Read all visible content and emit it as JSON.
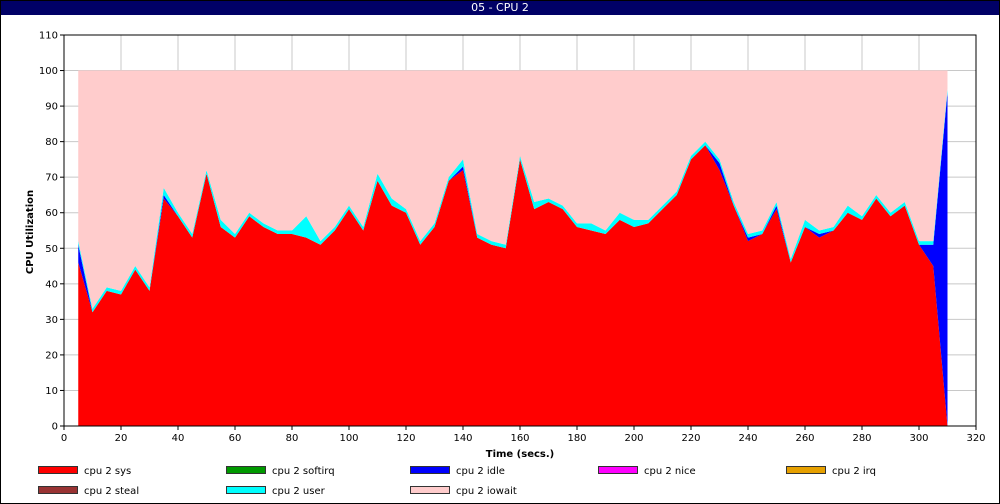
{
  "window": {
    "title": "05 - CPU 2"
  },
  "chart_data": {
    "type": "area",
    "title": "05 - CPU 2",
    "xlabel": "Time (secs.)",
    "ylabel": "CPU Utilization",
    "xlim": [
      0,
      320
    ],
    "ylim": [
      0,
      110
    ],
    "xticks": [
      0,
      20,
      40,
      60,
      80,
      100,
      120,
      140,
      160,
      180,
      200,
      220,
      240,
      260,
      280,
      300,
      320
    ],
    "yticks": [
      0,
      10,
      20,
      30,
      40,
      50,
      60,
      70,
      80,
      90,
      100,
      110
    ],
    "grid": true,
    "legend_position": "bottom",
    "x": [
      5,
      10,
      15,
      20,
      25,
      30,
      35,
      40,
      45,
      50,
      55,
      60,
      65,
      70,
      75,
      80,
      85,
      90,
      95,
      100,
      105,
      110,
      115,
      120,
      125,
      130,
      135,
      140,
      145,
      150,
      155,
      160,
      165,
      170,
      175,
      180,
      185,
      190,
      195,
      200,
      205,
      210,
      215,
      220,
      225,
      230,
      235,
      240,
      245,
      250,
      255,
      260,
      265,
      270,
      275,
      280,
      285,
      290,
      295,
      300,
      305,
      310
    ],
    "series": [
      {
        "name": "cpu 2 sys",
        "color": "#ff0000",
        "values": [
          46,
          32,
          38,
          37,
          44,
          38,
          64,
          59,
          53,
          71,
          56,
          53,
          59,
          56,
          54,
          54,
          53,
          51,
          55,
          61,
          55,
          69,
          62,
          60,
          51,
          56,
          69,
          72,
          53,
          51,
          50,
          75,
          61,
          63,
          61,
          56,
          55,
          54,
          58,
          56,
          57,
          61,
          65,
          75,
          79,
          72,
          62,
          52,
          54,
          61,
          46,
          56,
          53,
          55,
          60,
          58,
          64,
          59,
          62,
          51,
          45,
          0
        ]
      },
      {
        "name": "cpu 2 softirq",
        "color": "#009900",
        "values": [
          0,
          0,
          0,
          0,
          0,
          0,
          0,
          0,
          0,
          0,
          0,
          0,
          0,
          0,
          0,
          0,
          0,
          0,
          0,
          0,
          0,
          0,
          0,
          0,
          0,
          0,
          0,
          0,
          0,
          0,
          0,
          0,
          0,
          0,
          0,
          0,
          0,
          0,
          0,
          0,
          0,
          0,
          0,
          0,
          0,
          0,
          0,
          0,
          0,
          0,
          0,
          0,
          0,
          0,
          0,
          0,
          0,
          0,
          0,
          0,
          0,
          0
        ]
      },
      {
        "name": "cpu 2 idle",
        "color": "#0000ff",
        "values": [
          5,
          0,
          0,
          0,
          0,
          0,
          1,
          0,
          0,
          0,
          0,
          0,
          0,
          0,
          0,
          0,
          0,
          0,
          0,
          0,
          0,
          0,
          0,
          0,
          0,
          0,
          0,
          1,
          0,
          0,
          0,
          0,
          0,
          0,
          0,
          0,
          0,
          0,
          0,
          0,
          0,
          0,
          0,
          0,
          0,
          2,
          0,
          1,
          0,
          1,
          0,
          0,
          1,
          0,
          0,
          0,
          0,
          0,
          0,
          0,
          6,
          94
        ]
      },
      {
        "name": "cpu 2 nice",
        "color": "#ff00ff",
        "values": [
          0,
          0,
          0,
          0,
          0,
          0,
          0,
          0,
          0,
          0,
          0,
          0,
          0,
          0,
          0,
          0,
          0,
          0,
          0,
          0,
          0,
          0,
          0,
          0,
          0,
          0,
          0,
          0,
          0,
          0,
          0,
          0,
          0,
          0,
          0,
          0,
          0,
          0,
          0,
          0,
          0,
          0,
          0,
          0,
          0,
          0,
          0,
          0,
          0,
          0,
          0,
          0,
          0,
          0,
          0,
          0,
          0,
          0,
          0,
          0,
          0,
          0
        ]
      },
      {
        "name": "cpu 2 irq",
        "color": "#e6a000",
        "values": [
          0,
          0,
          0,
          0,
          0,
          0,
          0,
          0,
          0,
          0,
          0,
          0,
          0,
          0,
          0,
          0,
          0,
          0,
          0,
          0,
          0,
          0,
          0,
          0,
          0,
          0,
          0,
          0,
          0,
          0,
          0,
          0,
          0,
          0,
          0,
          0,
          0,
          0,
          0,
          0,
          0,
          0,
          0,
          0,
          0,
          0,
          0,
          0,
          0,
          0,
          0,
          0,
          0,
          0,
          0,
          0,
          0,
          0,
          0,
          0,
          0,
          0
        ]
      },
      {
        "name": "cpu 2 steal",
        "color": "#993333",
        "values": [
          0,
          0,
          0,
          0,
          0,
          0,
          0,
          0,
          0,
          0,
          0,
          0,
          0,
          0,
          0,
          0,
          0,
          0,
          0,
          0,
          0,
          0,
          0,
          0,
          0,
          0,
          0,
          0,
          0,
          0,
          0,
          0,
          0,
          0,
          0,
          0,
          0,
          0,
          0,
          0,
          0,
          0,
          0,
          0,
          0,
          0,
          0,
          0,
          0,
          0,
          0,
          0,
          0,
          0,
          0,
          0,
          0,
          0,
          0,
          0,
          0,
          0
        ]
      },
      {
        "name": "cpu 2 user",
        "color": "#00ffff",
        "values": [
          1,
          1,
          1,
          1,
          1,
          1,
          2,
          1,
          1,
          1,
          2,
          1,
          1,
          1,
          1,
          1,
          6,
          1,
          1,
          1,
          1,
          2,
          2,
          1,
          1,
          1,
          1,
          2,
          1,
          1,
          1,
          1,
          2,
          1,
          1,
          1,
          2,
          1,
          2,
          2,
          1,
          1,
          1,
          1,
          1,
          1,
          1,
          1,
          1,
          1,
          1,
          2,
          1,
          1,
          2,
          1,
          1,
          1,
          1,
          1,
          1,
          1
        ]
      },
      {
        "name": "cpu 2 iowait",
        "color": "#ffcccc",
        "values": [
          48,
          67,
          61,
          62,
          55,
          61,
          33,
          40,
          46,
          28,
          42,
          46,
          40,
          43,
          45,
          45,
          41,
          48,
          44,
          38,
          44,
          29,
          36,
          39,
          48,
          43,
          30,
          25,
          46,
          48,
          49,
          24,
          37,
          36,
          38,
          43,
          43,
          45,
          40,
          42,
          42,
          38,
          34,
          24,
          20,
          25,
          37,
          46,
          45,
          37,
          53,
          42,
          45,
          44,
          38,
          41,
          35,
          40,
          37,
          48,
          48,
          5
        ]
      }
    ]
  }
}
